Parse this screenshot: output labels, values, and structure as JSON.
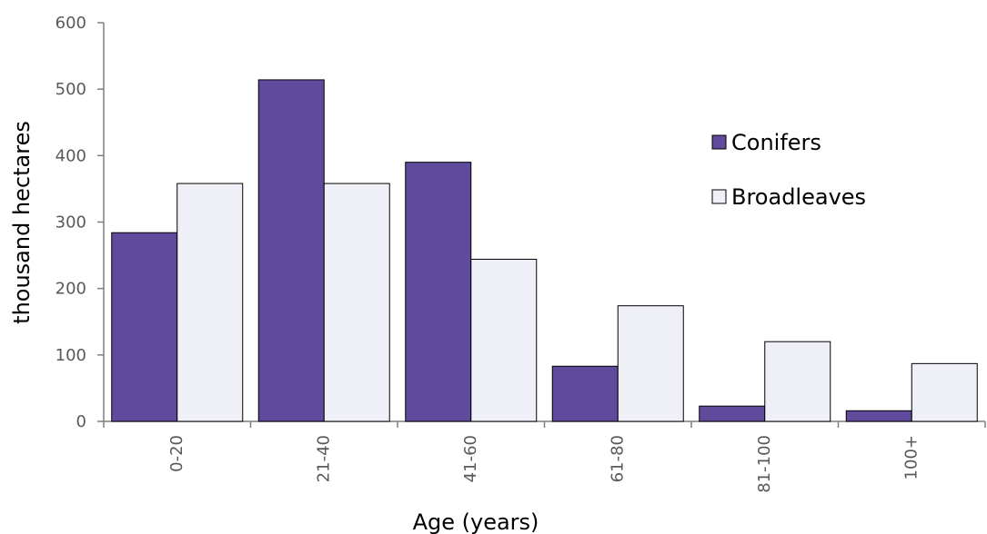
{
  "chart_data": {
    "type": "bar",
    "title": "",
    "xlabel": "Age (years)",
    "ylabel": "thousand hectares",
    "categories": [
      "0-20",
      "21-40",
      "41-60",
      "61-80",
      "81-100",
      "100+"
    ],
    "series": [
      {
        "name": "Conifers",
        "color": "#604a9c",
        "values": [
          284,
          514,
          390,
          83,
          23,
          16
        ]
      },
      {
        "name": "Broadleaves",
        "color": "#efeff7",
        "values": [
          358,
          358,
          244,
          174,
          120,
          87
        ]
      }
    ],
    "ylim": [
      0,
      600
    ],
    "yticks": [
      0,
      100,
      200,
      300,
      400,
      500,
      600
    ],
    "legend_position": "right",
    "grid": false
  }
}
